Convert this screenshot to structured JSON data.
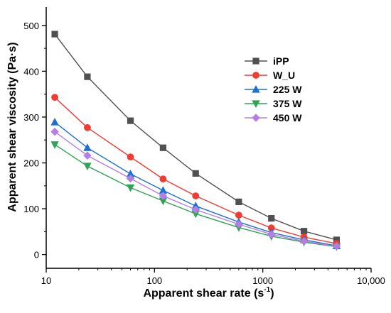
{
  "chart_data": {
    "type": "line",
    "title": "",
    "xlabel": "Apparent shear rate (s",
    "xlabel_sup": "-1",
    "xlabel_tail": ")",
    "ylabel": "Apparent shear viscosity (Pa·s)",
    "x_scale": "log",
    "xlim": [
      10,
      10000
    ],
    "ylim": [
      -30,
      540
    ],
    "x_ticks": [
      10,
      100,
      1000,
      10000
    ],
    "x_tick_labels": [
      "10",
      "100",
      "1000",
      "10,000"
    ],
    "y_ticks": [
      0,
      100,
      200,
      300,
      400,
      500
    ],
    "y_tick_labels": [
      "0",
      "100",
      "200",
      "300",
      "400",
      "500"
    ],
    "grid": false,
    "legend_position": "top-right",
    "x": [
      12,
      24,
      60,
      120,
      240,
      600,
      1200,
      2400,
      4800
    ],
    "series": [
      {
        "name": "iPP",
        "color": "#505050",
        "marker": "square",
        "values": [
          481,
          388,
          292,
          233,
          177,
          115,
          79,
          51,
          32
        ]
      },
      {
        "name": "W_U",
        "color": "#f03c32",
        "marker": "circle",
        "values": [
          343,
          277,
          213,
          165,
          128,
          86,
          58,
          38,
          24
        ]
      },
      {
        "name": "225 W",
        "color": "#1f6fd1",
        "marker": "triangle-up",
        "values": [
          289,
          233,
          176,
          140,
          106,
          71,
          48,
          32,
          19
        ]
      },
      {
        "name": "375 W",
        "color": "#2ea455",
        "marker": "triangle-down",
        "values": [
          240,
          193,
          146,
          117,
          89,
          59,
          40,
          27,
          17
        ]
      },
      {
        "name": "450 W",
        "color": "#b57ee6",
        "marker": "diamond",
        "values": [
          268,
          216,
          166,
          128,
          98,
          66,
          44,
          29,
          18
        ]
      }
    ]
  }
}
